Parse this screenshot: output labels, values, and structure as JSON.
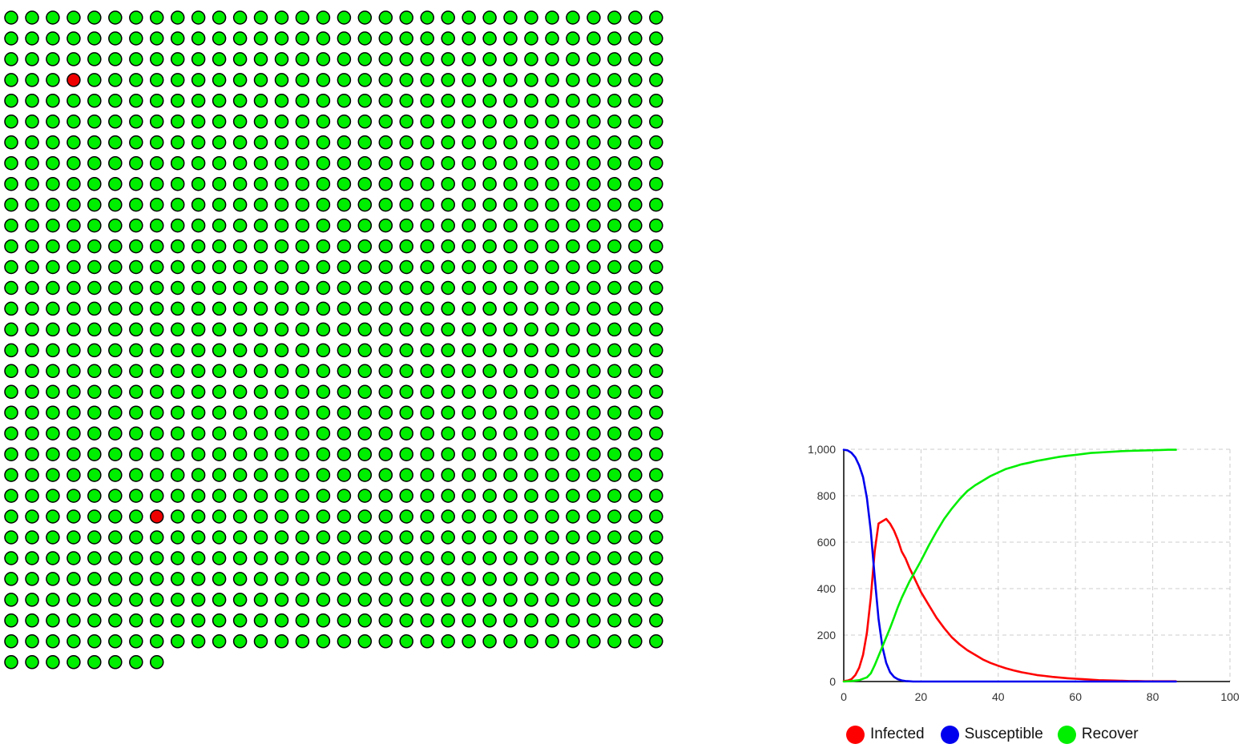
{
  "grid": {
    "total": 1000,
    "columns": 32,
    "healthy_color": "#00ee00",
    "infected_color": "#ee0000",
    "node_stroke": "#000000",
    "infected_indices": [
      99,
      775
    ]
  },
  "chart_data": {
    "type": "line",
    "xlim": [
      0,
      100
    ],
    "ylim": [
      0,
      1000
    ],
    "x_ticks": [
      0,
      20,
      40,
      60,
      80,
      100
    ],
    "x_tick_labels": [
      "0",
      "20",
      "40",
      "60",
      "80",
      "100"
    ],
    "y_ticks": [
      0,
      200,
      400,
      600,
      800,
      1000
    ],
    "y_tick_labels": [
      "0",
      "200",
      "400",
      "600",
      "800",
      "1,000"
    ],
    "grid": true,
    "legend_position": "bottom",
    "series": [
      {
        "name": "Infected",
        "color": "#ff0000",
        "x": [
          0,
          1,
          2,
          3,
          4,
          5,
          6,
          7,
          8,
          9,
          10,
          11,
          12,
          13,
          14,
          15,
          16,
          17,
          18,
          19,
          20,
          22,
          24,
          26,
          28,
          30,
          32,
          34,
          36,
          38,
          40,
          42,
          44,
          46,
          48,
          50,
          52,
          54,
          56,
          58,
          60,
          62,
          64,
          66,
          68,
          70,
          72,
          74,
          76,
          78,
          80,
          82,
          84,
          86
        ],
        "y": [
          2,
          4,
          10,
          28,
          60,
          115,
          210,
          360,
          560,
          680,
          690,
          700,
          680,
          650,
          610,
          560,
          530,
          490,
          455,
          420,
          385,
          330,
          275,
          230,
          190,
          160,
          135,
          115,
          95,
          80,
          68,
          57,
          48,
          40,
          34,
          28,
          24,
          20,
          17,
          14,
          12,
          10,
          8,
          6,
          5,
          4,
          3,
          2,
          2,
          1,
          1,
          1,
          1,
          1
        ]
      },
      {
        "name": "Susceptible",
        "color": "#0000ee",
        "x": [
          0,
          1,
          2,
          3,
          4,
          5,
          6,
          7,
          8,
          9,
          10,
          11,
          12,
          13,
          14,
          15,
          16,
          17,
          18,
          20,
          30,
          40,
          50,
          60,
          70,
          80,
          86
        ],
        "y": [
          998,
          995,
          985,
          965,
          930,
          880,
          790,
          650,
          450,
          270,
          150,
          80,
          40,
          20,
          10,
          5,
          2,
          1,
          0,
          0,
          0,
          0,
          0,
          0,
          0,
          0,
          0
        ]
      },
      {
        "name": "Recover",
        "color": "#00ee00",
        "x": [
          0,
          2,
          4,
          6,
          7,
          8,
          9,
          10,
          11,
          12,
          13,
          14,
          15,
          16,
          17,
          18,
          19,
          20,
          22,
          24,
          26,
          28,
          30,
          32,
          34,
          36,
          38,
          40,
          42,
          44,
          46,
          48,
          50,
          52,
          54,
          56,
          58,
          60,
          62,
          64,
          66,
          68,
          70,
          72,
          74,
          76,
          78,
          80,
          82,
          84,
          86
        ],
        "y": [
          0,
          2,
          6,
          18,
          35,
          70,
          110,
          150,
          190,
          230,
          275,
          320,
          360,
          395,
          430,
          460,
          490,
          520,
          585,
          645,
          700,
          745,
          785,
          820,
          845,
          865,
          885,
          900,
          915,
          925,
          935,
          942,
          950,
          956,
          962,
          968,
          972,
          976,
          980,
          984,
          986,
          988,
          990,
          992,
          993,
          994,
          995,
          996,
          997,
          998,
          998
        ]
      }
    ]
  },
  "legend": {
    "items": [
      {
        "label": "Infected",
        "color": "#ff0000"
      },
      {
        "label": "Susceptible",
        "color": "#0000ee"
      },
      {
        "label": "Recover",
        "color": "#00ee00"
      }
    ]
  }
}
